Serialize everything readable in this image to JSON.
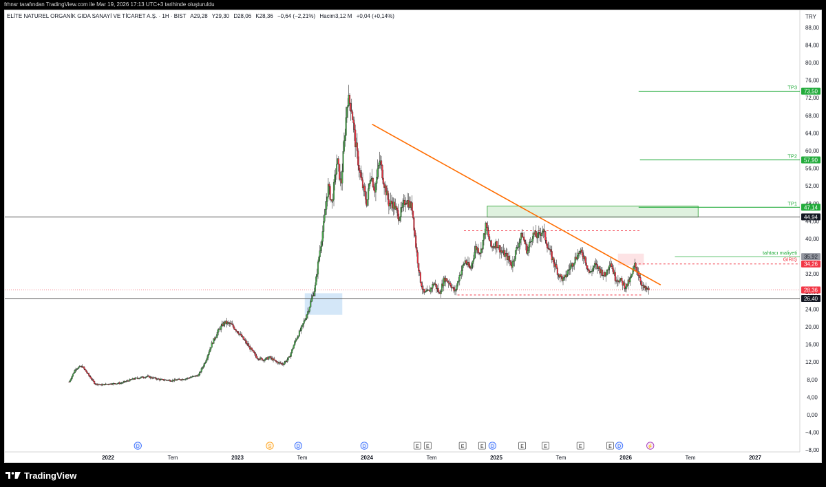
{
  "header": {
    "published_note": "frhnsr tarafından TradingView.com ile Mar 19, 2026 17:13 UTC+3 tarihinde oluşturuldu",
    "symbol_line": "ELİTE NATUREL ORGANİK GIDA SANAYİ VE TİCARET A.Ş. · 1H · BIST",
    "open": "A29,28",
    "high": "Y29,30",
    "low": "D28,06",
    "close": "K28,36",
    "change": "−0,64 (−2,21%)",
    "volume": "Hacim3,12 M",
    "vol_change": "+0,04 (+0,14%)"
  },
  "footer": {
    "brand": "TradingView"
  },
  "chart_data": {
    "type": "candlestick",
    "currency": "TRY",
    "y_range": [
      -8,
      90
    ],
    "y_ticks": [
      -8,
      -4,
      0,
      4,
      8,
      12,
      16,
      20,
      24,
      28,
      32,
      36,
      40,
      44,
      48,
      52,
      56,
      60,
      64,
      68,
      72,
      76,
      80,
      84,
      88
    ],
    "y_tick_labels": [
      "−8,00",
      "−4,00",
      "0,00",
      "4,00",
      "8,00",
      "12,00",
      "16,00",
      "20,00",
      "24,00",
      "28,00",
      "32,00",
      "36,00",
      "40,00",
      "44,00",
      "48,00",
      "52,00",
      "56,00",
      "60,00",
      "64,00",
      "68,00",
      "72,00",
      "76,00",
      "80,00",
      "84,00",
      "88,00"
    ],
    "x_range": [
      2021.6,
      2027.3
    ],
    "x_ticks": [
      {
        "t": 2022.0,
        "label": "2022",
        "bold": true
      },
      {
        "t": 2022.5,
        "label": "Tem",
        "bold": false
      },
      {
        "t": 2023.0,
        "label": "2023",
        "bold": true
      },
      {
        "t": 2023.5,
        "label": "Tem",
        "bold": false
      },
      {
        "t": 2024.0,
        "label": "2024",
        "bold": true
      },
      {
        "t": 2024.5,
        "label": "Tem",
        "bold": false
      },
      {
        "t": 2025.0,
        "label": "2025",
        "bold": true
      },
      {
        "t": 2025.5,
        "label": "Tem",
        "bold": false
      },
      {
        "t": 2026.0,
        "label": "2026",
        "bold": true
      },
      {
        "t": 2026.5,
        "label": "Tem",
        "bold": false
      },
      {
        "t": 2027.0,
        "label": "2027",
        "bold": true
      }
    ],
    "series_path": [
      [
        2021.7,
        7.5
      ],
      [
        2021.75,
        10.5
      ],
      [
        2021.8,
        11
      ],
      [
        2021.85,
        9
      ],
      [
        2021.9,
        7
      ],
      [
        2021.95,
        6.8
      ],
      [
        2022.0,
        7
      ],
      [
        2022.1,
        7.2
      ],
      [
        2022.2,
        8.2
      ],
      [
        2022.3,
        8.7
      ],
      [
        2022.4,
        8
      ],
      [
        2022.5,
        7.8
      ],
      [
        2022.6,
        8.2
      ],
      [
        2022.7,
        9
      ],
      [
        2022.75,
        12
      ],
      [
        2022.8,
        16
      ],
      [
        2022.85,
        19
      ],
      [
        2022.9,
        21
      ],
      [
        2022.95,
        20.5
      ],
      [
        2023.0,
        19
      ],
      [
        2023.05,
        17
      ],
      [
        2023.1,
        15
      ],
      [
        2023.15,
        13
      ],
      [
        2023.2,
        12.5
      ],
      [
        2023.25,
        13
      ],
      [
        2023.3,
        12
      ],
      [
        2023.35,
        11.5
      ],
      [
        2023.4,
        13
      ],
      [
        2023.45,
        17
      ],
      [
        2023.5,
        20
      ],
      [
        2023.55,
        24
      ],
      [
        2023.6,
        29
      ],
      [
        2023.63,
        36
      ],
      [
        2023.67,
        44
      ],
      [
        2023.7,
        52
      ],
      [
        2023.73,
        48
      ],
      [
        2023.77,
        58
      ],
      [
        2023.8,
        52
      ],
      [
        2023.85,
        72
      ],
      [
        2023.88,
        70
      ],
      [
        2023.91,
        62
      ],
      [
        2023.95,
        54
      ],
      [
        2024.0,
        48
      ],
      [
        2024.03,
        55
      ],
      [
        2024.06,
        51
      ],
      [
        2024.1,
        58
      ],
      [
        2024.13,
        53
      ],
      [
        2024.17,
        48
      ],
      [
        2024.2,
        48
      ],
      [
        2024.25,
        45
      ],
      [
        2024.3,
        49
      ],
      [
        2024.35,
        47
      ],
      [
        2024.38,
        38
      ],
      [
        2024.41,
        31
      ],
      [
        2024.44,
        27.5
      ],
      [
        2024.48,
        28
      ],
      [
        2024.52,
        30
      ],
      [
        2024.56,
        27.5
      ],
      [
        2024.6,
        31
      ],
      [
        2024.64,
        30
      ],
      [
        2024.68,
        27.8
      ],
      [
        2024.72,
        32
      ],
      [
        2024.76,
        35
      ],
      [
        2024.8,
        33
      ],
      [
        2024.84,
        38
      ],
      [
        2024.88,
        37
      ],
      [
        2024.92,
        43
      ],
      [
        2024.96,
        38
      ],
      [
        2025.0,
        39
      ],
      [
        2025.04,
        37
      ],
      [
        2025.08,
        36
      ],
      [
        2025.12,
        34
      ],
      [
        2025.16,
        38
      ],
      [
        2025.2,
        41
      ],
      [
        2025.24,
        37
      ],
      [
        2025.28,
        41
      ],
      [
        2025.32,
        40.5
      ],
      [
        2025.36,
        42
      ],
      [
        2025.4,
        38
      ],
      [
        2025.44,
        35
      ],
      [
        2025.48,
        32
      ],
      [
        2025.52,
        30.5
      ],
      [
        2025.56,
        33
      ],
      [
        2025.6,
        35
      ],
      [
        2025.64,
        37
      ],
      [
        2025.68,
        36
      ],
      [
        2025.72,
        32
      ],
      [
        2025.76,
        34
      ],
      [
        2025.8,
        33
      ],
      [
        2025.84,
        31.5
      ],
      [
        2025.88,
        35
      ],
      [
        2025.92,
        31
      ],
      [
        2025.96,
        30.5
      ],
      [
        2026.0,
        29
      ],
      [
        2026.04,
        31
      ],
      [
        2026.07,
        34
      ],
      [
        2026.1,
        32
      ],
      [
        2026.13,
        29
      ],
      [
        2026.16,
        28.4
      ],
      [
        2026.18,
        28.36
      ]
    ],
    "last_price": 28.36,
    "annotations": {
      "trendline": {
        "from": [
          2024.04,
          66
        ],
        "to": [
          2026.27,
          29.5
        ]
      },
      "resistance_line": 44.94,
      "support_line": 26.4,
      "tp_lines": [
        {
          "label": "TP3",
          "value": 73.5,
          "value_label": "73,50",
          "from_t": 2026.1
        },
        {
          "label": "TP2",
          "value": 57.9,
          "value_label": "57,90",
          "from_t": 2026.11
        },
        {
          "label": "TP1",
          "value": 47.14,
          "value_label": "47,14",
          "from_t": 2026.1
        }
      ],
      "tahtaci": {
        "label": "tahtacı maliyeti",
        "value": 35.92,
        "value_label": "35,92",
        "from_t": 2026.38
      },
      "giris": {
        "label": "GİRİŞ",
        "value": 34.26,
        "value_label": "34,26",
        "from_t": 2026.1
      },
      "price_labels": [
        {
          "value": 44.94,
          "label": "44,94"
        },
        {
          "value": 28.36,
          "label": "28,36"
        },
        {
          "value": 26.4,
          "label": "26,40"
        }
      ],
      "dashed_top": {
        "value": 41.8,
        "from_t": 2024.75,
        "to_t": 2026.12
      },
      "dashed_bottom": {
        "value": 27.2,
        "from_t": 2024.7,
        "to_t": 2026.12
      },
      "green_zone": {
        "t0": 2024.93,
        "t1": 2026.56,
        "v0": 44.9,
        "v1": 47.4
      },
      "blue_zone": {
        "t0": 2023.52,
        "t1": 2023.81,
        "v0": 22.7,
        "v1": 27.6
      },
      "pink_zone": {
        "t0": 2025.94,
        "t1": 2026.14,
        "v0": 34.0,
        "v1": 36.6
      }
    },
    "events": [
      {
        "t": 2022.23,
        "letter": "D"
      },
      {
        "t": 2023.25,
        "letter": "S"
      },
      {
        "t": 2023.47,
        "letter": "D"
      },
      {
        "t": 2023.98,
        "letter": "D"
      },
      {
        "t": 2024.39,
        "letter": "E"
      },
      {
        "t": 2024.47,
        "letter": "E"
      },
      {
        "t": 2024.74,
        "letter": "E"
      },
      {
        "t": 2024.89,
        "letter": "E"
      },
      {
        "t": 2024.97,
        "letter": "D"
      },
      {
        "t": 2025.2,
        "letter": "E"
      },
      {
        "t": 2025.38,
        "letter": "E"
      },
      {
        "t": 2025.65,
        "letter": "E"
      },
      {
        "t": 2025.88,
        "letter": "E"
      },
      {
        "t": 2025.95,
        "letter": "D"
      },
      {
        "t": 2026.19,
        "letter": "⚡"
      }
    ]
  }
}
